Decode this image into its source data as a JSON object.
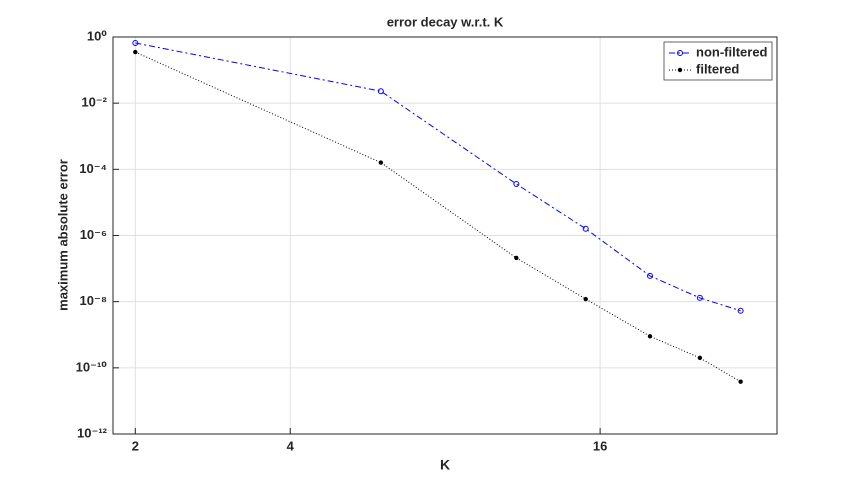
{
  "chart_data": {
    "type": "line",
    "title": "error decay w.r.t. K",
    "xlabel": "K",
    "ylabel": "maximum absolute error",
    "xscale": "log",
    "yscale": "log",
    "grid": true,
    "legend_loc": "northeast",
    "x": [
      2,
      6,
      11,
      15,
      20,
      25,
      30
    ],
    "xlim": [
      1.81,
      35.3
    ],
    "xticks": [
      2,
      4,
      16
    ],
    "ylim": [
      1e-12,
      1
    ],
    "yticks": [
      {
        "value": 1e-12,
        "label": "10⁻¹²"
      },
      {
        "value": 1e-10,
        "label": "10⁻¹⁰"
      },
      {
        "value": 1e-08,
        "label": "10⁻⁸"
      },
      {
        "value": 1e-06,
        "label": "10⁻⁶"
      },
      {
        "value": 0.0001,
        "label": "10⁻⁴"
      },
      {
        "value": 0.01,
        "label": "10⁻²"
      },
      {
        "value": 1,
        "label": "10⁰"
      }
    ],
    "series": [
      {
        "name": "non-filtered",
        "color": "#0000ff",
        "values": [
          0.66,
          0.023,
          3.6e-05,
          1.6e-06,
          6e-08,
          1.3e-08,
          5.3e-09
        ]
      },
      {
        "name": "filtered",
        "color": "#000000",
        "values": [
          0.35,
          0.00016,
          2.1e-07,
          1.2e-08,
          9e-10,
          2e-10,
          3.8e-11
        ]
      }
    ]
  }
}
